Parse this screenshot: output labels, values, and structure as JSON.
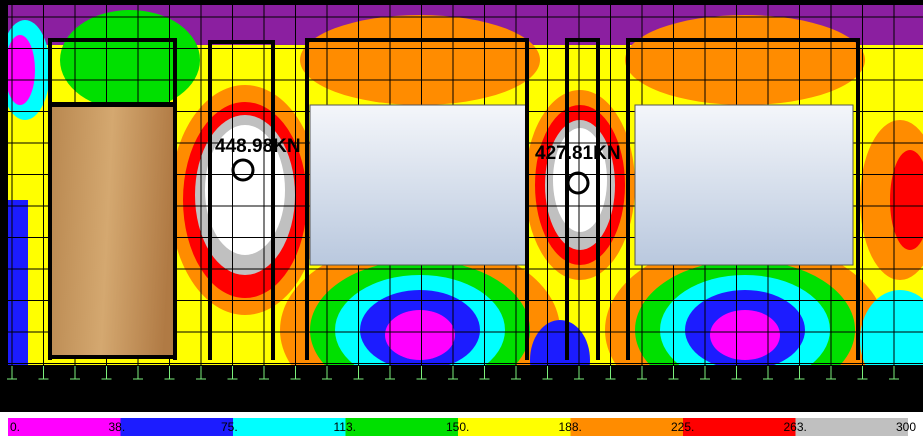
{
  "plot": {
    "labels": [
      {
        "text": "448.98KN"
      },
      {
        "text": "427.81KN"
      }
    ]
  },
  "legend": {
    "entries": [
      {
        "label": "0.",
        "color": "#ff00ff"
      },
      {
        "label": "38.",
        "color": "#1c1cff"
      },
      {
        "label": "75.",
        "color": "#00ffff"
      },
      {
        "label": "113.",
        "color": "#00e000"
      },
      {
        "label": "150.",
        "color": "#ffff00"
      },
      {
        "label": "188.",
        "color": "#ff8c00"
      },
      {
        "label": "225.",
        "color": "#ff0000"
      },
      {
        "label": "263.",
        "color": "#c0c0c0"
      },
      {
        "label": "300",
        "color": "#ffffff"
      }
    ]
  }
}
